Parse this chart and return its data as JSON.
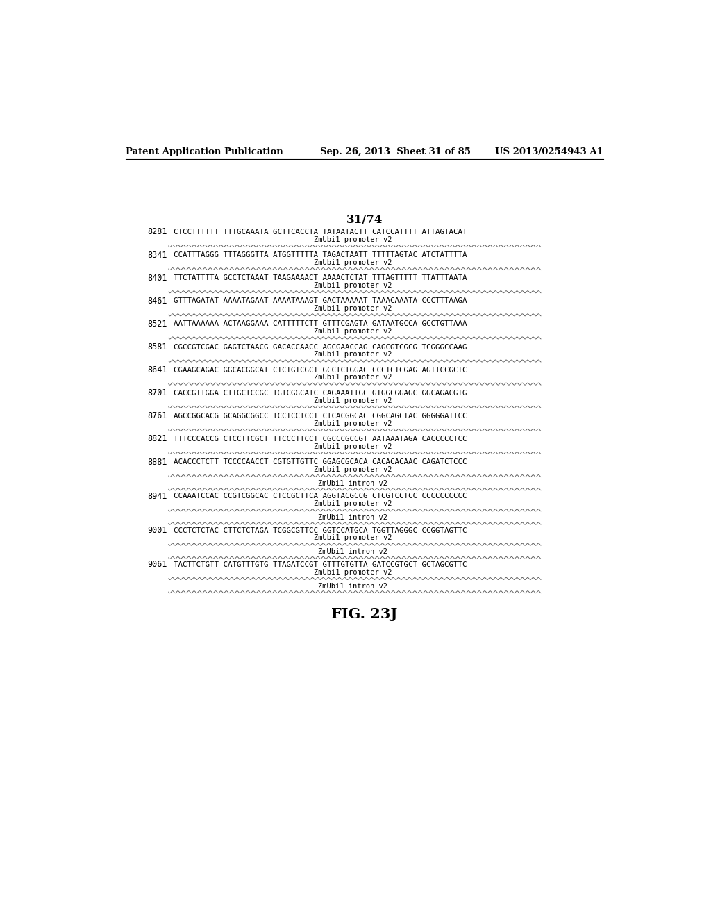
{
  "header_left": "Patent Application Publication",
  "header_mid": "Sep. 26, 2013  Sheet 31 of 85",
  "header_right": "US 2013/0254943 A1",
  "page_fraction": "31/74",
  "figure_label": "FIG. 23J",
  "background_color": "#ffffff",
  "entries": [
    {
      "num": "8281",
      "seq": "CTCCTTTTTT TTTGCAAATA GCTTCACCTA TATAATACTT CATCCATTTT ATTAGTACAT",
      "label": "ZmUbi1 promoter v2",
      "extra_label": null
    },
    {
      "num": "8341",
      "seq": "CCATTTAGGG TTTAGGGTTA ATGGTTTTTA TAGACTAATT TTTTTAGTAC ATCTATTTTA",
      "label": "ZmUbi1 promoter v2",
      "extra_label": null
    },
    {
      "num": "8401",
      "seq": "TTCTATTTTA GCCTCTAAAT TAAGAAAACT AAAACTCTAT TTTAGTTTTT TTATTTAATA",
      "label": "ZmUbi1 promoter v2",
      "extra_label": null
    },
    {
      "num": "8461",
      "seq": "GTTTAGATAT AAAATAGAAT AAAATAAAGT GACTAAAAAT TAAACAAATA CCCTTTAAGA",
      "label": "ZmUbi1 promoter v2",
      "extra_label": null
    },
    {
      "num": "8521",
      "seq": "AATTAAAAAA ACTAAGGAAA CATTTTTCTT GTTTCGAGTA GATAATGCCA GCCTGTTAAA",
      "label": "ZmUbi1 promoter v2",
      "extra_label": null
    },
    {
      "num": "8581",
      "seq": "CGCCGTCGAC GAGTCTAACG GACACCAACC AGCGAACCAG CAGCGTCGCG TCGGGCCAAG",
      "label": "ZmUbi1 promoter v2",
      "extra_label": null
    },
    {
      "num": "8641",
      "seq": "CGAAGCAGAC GGCACGGCAT CTCTGTCGCT GCCTCTGGAC CCCTCTCGAG AGTTCCGCTC",
      "label": "ZmUbi1 promoter v2",
      "extra_label": null
    },
    {
      "num": "8701",
      "seq": "CACCGTTGGA CTTGCTCCGC TGTCGGCATC CAGAAATTGC GTGGCGGAGC GGCAGACGTG",
      "label": "ZmUbi1 promoter v2",
      "extra_label": null
    },
    {
      "num": "8761",
      "seq": "AGCCGGCACG GCAGGCGGCC TCCTCCTCCT CTCACGGCAC CGGCAGCTAC GGGGGATTCC",
      "label": "ZmUbi1 promoter v2",
      "extra_label": null
    },
    {
      "num": "8821",
      "seq": "TTTCCCACCG CTCCTTCGCT TTCCCTTCCT CGCCCGCCGT AATAAATAGA CACCCCCTCC",
      "label": "ZmUbi1 promoter v2",
      "extra_label": null
    },
    {
      "num": "8881",
      "seq": "ACACCCTCTT TCCCCAACCT CGTGTTGTTC GGAGCGCACA CACACACAAC CAGATCTCCC",
      "label": "ZmUbi1 promoter v2",
      "extra_label": "ZmUbi1 intron v2"
    },
    {
      "num": "8941",
      "seq": "CCAAATCCAC CCGTCGGCAC CTCCGCTTCA AGGTACGCCG CTCGTCCTCC CCCCCCCCCC",
      "label": "ZmUbi1 promoter v2",
      "extra_label": "ZmUbi1 intron v2"
    },
    {
      "num": "9001",
      "seq": "CCCTCTCTAC CTTCTCTAGA TCGGCGTTCC GGTCCATGCA TGGTTAGGGC CCGGTAGTTC",
      "label": "ZmUbi1 promoter v2",
      "extra_label": "ZmUbi1 intron v2"
    },
    {
      "num": "9061",
      "seq": "TACTTCTGTT CATGTTTGTG TTAGATCCGT GTTTGTGTTA GATCCGTGCT GCTAGCGTTC",
      "label": "ZmUbi1 promoter v2",
      "extra_label": "ZmUbi1 intron v2"
    }
  ]
}
